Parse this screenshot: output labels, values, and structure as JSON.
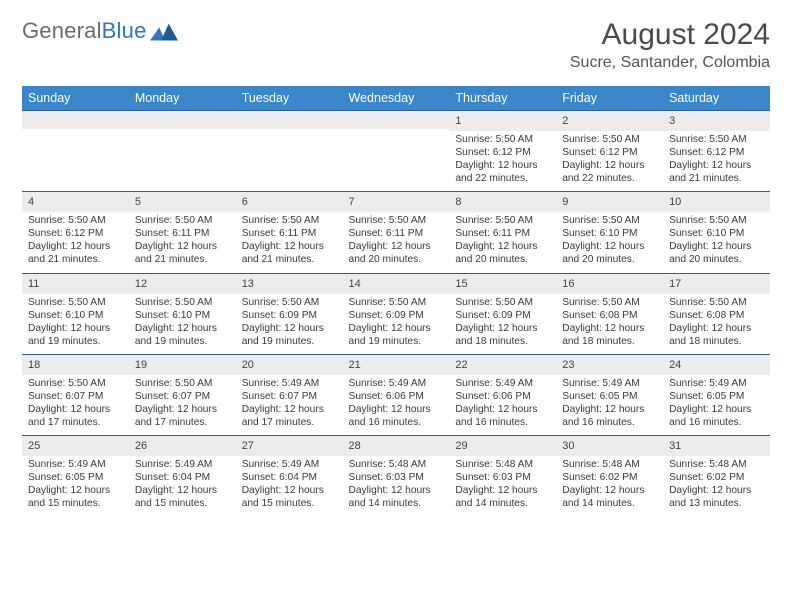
{
  "brand": {
    "first": "General",
    "second": "Blue"
  },
  "title": "August 2024",
  "location": "Sucre, Santander, Colombia",
  "colors": {
    "header_bg": "#3a86c8",
    "header_text": "#ffffff",
    "row_divider": "#2f5e87",
    "daynum_bg": "#ececec",
    "brand_blue": "#2f78bd",
    "brand_grey": "#6b6b6b",
    "page_bg": "#ffffff"
  },
  "weekdays": [
    "Sunday",
    "Monday",
    "Tuesday",
    "Wednesday",
    "Thursday",
    "Friday",
    "Saturday"
  ],
  "weeks": [
    [
      null,
      null,
      null,
      null,
      {
        "n": "1",
        "sunrise": "5:50 AM",
        "sunset": "6:12 PM",
        "daylight": "12 hours and 22 minutes."
      },
      {
        "n": "2",
        "sunrise": "5:50 AM",
        "sunset": "6:12 PM",
        "daylight": "12 hours and 22 minutes."
      },
      {
        "n": "3",
        "sunrise": "5:50 AM",
        "sunset": "6:12 PM",
        "daylight": "12 hours and 21 minutes."
      }
    ],
    [
      {
        "n": "4",
        "sunrise": "5:50 AM",
        "sunset": "6:12 PM",
        "daylight": "12 hours and 21 minutes."
      },
      {
        "n": "5",
        "sunrise": "5:50 AM",
        "sunset": "6:11 PM",
        "daylight": "12 hours and 21 minutes."
      },
      {
        "n": "6",
        "sunrise": "5:50 AM",
        "sunset": "6:11 PM",
        "daylight": "12 hours and 21 minutes."
      },
      {
        "n": "7",
        "sunrise": "5:50 AM",
        "sunset": "6:11 PM",
        "daylight": "12 hours and 20 minutes."
      },
      {
        "n": "8",
        "sunrise": "5:50 AM",
        "sunset": "6:11 PM",
        "daylight": "12 hours and 20 minutes."
      },
      {
        "n": "9",
        "sunrise": "5:50 AM",
        "sunset": "6:10 PM",
        "daylight": "12 hours and 20 minutes."
      },
      {
        "n": "10",
        "sunrise": "5:50 AM",
        "sunset": "6:10 PM",
        "daylight": "12 hours and 20 minutes."
      }
    ],
    [
      {
        "n": "11",
        "sunrise": "5:50 AM",
        "sunset": "6:10 PM",
        "daylight": "12 hours and 19 minutes."
      },
      {
        "n": "12",
        "sunrise": "5:50 AM",
        "sunset": "6:10 PM",
        "daylight": "12 hours and 19 minutes."
      },
      {
        "n": "13",
        "sunrise": "5:50 AM",
        "sunset": "6:09 PM",
        "daylight": "12 hours and 19 minutes."
      },
      {
        "n": "14",
        "sunrise": "5:50 AM",
        "sunset": "6:09 PM",
        "daylight": "12 hours and 19 minutes."
      },
      {
        "n": "15",
        "sunrise": "5:50 AM",
        "sunset": "6:09 PM",
        "daylight": "12 hours and 18 minutes."
      },
      {
        "n": "16",
        "sunrise": "5:50 AM",
        "sunset": "6:08 PM",
        "daylight": "12 hours and 18 minutes."
      },
      {
        "n": "17",
        "sunrise": "5:50 AM",
        "sunset": "6:08 PM",
        "daylight": "12 hours and 18 minutes."
      }
    ],
    [
      {
        "n": "18",
        "sunrise": "5:50 AM",
        "sunset": "6:07 PM",
        "daylight": "12 hours and 17 minutes."
      },
      {
        "n": "19",
        "sunrise": "5:50 AM",
        "sunset": "6:07 PM",
        "daylight": "12 hours and 17 minutes."
      },
      {
        "n": "20",
        "sunrise": "5:49 AM",
        "sunset": "6:07 PM",
        "daylight": "12 hours and 17 minutes."
      },
      {
        "n": "21",
        "sunrise": "5:49 AM",
        "sunset": "6:06 PM",
        "daylight": "12 hours and 16 minutes."
      },
      {
        "n": "22",
        "sunrise": "5:49 AM",
        "sunset": "6:06 PM",
        "daylight": "12 hours and 16 minutes."
      },
      {
        "n": "23",
        "sunrise": "5:49 AM",
        "sunset": "6:05 PM",
        "daylight": "12 hours and 16 minutes."
      },
      {
        "n": "24",
        "sunrise": "5:49 AM",
        "sunset": "6:05 PM",
        "daylight": "12 hours and 16 minutes."
      }
    ],
    [
      {
        "n": "25",
        "sunrise": "5:49 AM",
        "sunset": "6:05 PM",
        "daylight": "12 hours and 15 minutes."
      },
      {
        "n": "26",
        "sunrise": "5:49 AM",
        "sunset": "6:04 PM",
        "daylight": "12 hours and 15 minutes."
      },
      {
        "n": "27",
        "sunrise": "5:49 AM",
        "sunset": "6:04 PM",
        "daylight": "12 hours and 15 minutes."
      },
      {
        "n": "28",
        "sunrise": "5:48 AM",
        "sunset": "6:03 PM",
        "daylight": "12 hours and 14 minutes."
      },
      {
        "n": "29",
        "sunrise": "5:48 AM",
        "sunset": "6:03 PM",
        "daylight": "12 hours and 14 minutes."
      },
      {
        "n": "30",
        "sunrise": "5:48 AM",
        "sunset": "6:02 PM",
        "daylight": "12 hours and 14 minutes."
      },
      {
        "n": "31",
        "sunrise": "5:48 AM",
        "sunset": "6:02 PM",
        "daylight": "12 hours and 13 minutes."
      }
    ]
  ],
  "labels": {
    "sunrise": "Sunrise:",
    "sunset": "Sunset:",
    "daylight": "Daylight:"
  }
}
